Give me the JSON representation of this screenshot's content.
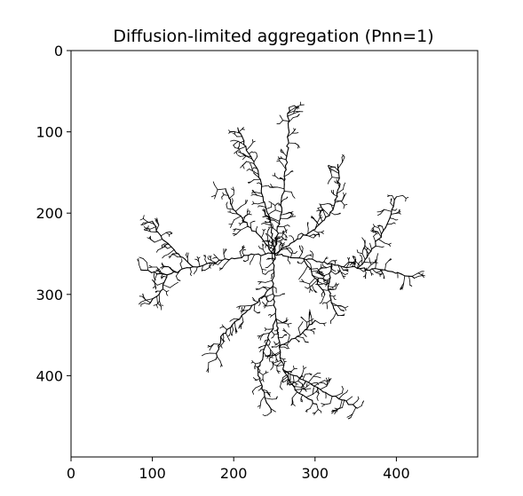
{
  "chart_data": {
    "type": "image",
    "title": "Diffusion-limited aggregation (Pnn=1)",
    "xlim": [
      0,
      500
    ],
    "ylim": [
      500,
      0
    ],
    "y_inverted": true,
    "grid": false,
    "legend": "none",
    "x_ticks": [
      0,
      100,
      200,
      300,
      400
    ],
    "y_ticks": [
      0,
      100,
      200,
      300,
      400
    ],
    "x_tick_labels": [
      "0",
      "100",
      "200",
      "300",
      "400"
    ],
    "y_tick_labels": [
      "0",
      "100",
      "200",
      "300",
      "400"
    ],
    "cluster": {
      "seed": [
        250,
        250
      ],
      "extent_x": [
        85,
        425
      ],
      "extent_y": [
        65,
        445
      ],
      "color": "#000000",
      "arms": [
        {
          "name": "north",
          "points": [
            [
              250,
              250
            ],
            [
              256,
              210
            ],
            [
              262,
              170
            ],
            [
              266,
              125
            ],
            [
              268,
              70
            ]
          ]
        },
        {
          "name": "north-west",
          "points": [
            [
              250,
              250
            ],
            [
              246,
              215
            ],
            [
              236,
              180
            ],
            [
              230,
              148
            ],
            [
              215,
              118
            ],
            [
              205,
              95
            ]
          ]
        },
        {
          "name": "north-east",
          "points": [
            [
              250,
              250
            ],
            [
              278,
              232
            ],
            [
              300,
              220
            ],
            [
              322,
              196
            ],
            [
              330,
              168
            ],
            [
              328,
              140
            ]
          ]
        },
        {
          "name": "north-west-2",
          "points": [
            [
              250,
              250
            ],
            [
              232,
              228
            ],
            [
              212,
              210
            ],
            [
              196,
              188
            ],
            [
              190,
              170
            ]
          ]
        },
        {
          "name": "west",
          "points": [
            [
              250,
              250
            ],
            [
              218,
              252
            ],
            [
              186,
              258
            ],
            [
              150,
              266
            ],
            [
              118,
              276
            ],
            [
              86,
              270
            ]
          ]
        },
        {
          "name": "west-upper",
          "points": [
            [
              150,
              266
            ],
            [
              132,
              250
            ],
            [
              112,
              232
            ],
            [
              100,
              210
            ]
          ]
        },
        {
          "name": "west-lower",
          "points": [
            [
              118,
              276
            ],
            [
              110,
              296
            ],
            [
              96,
              312
            ]
          ]
        },
        {
          "name": "east",
          "points": [
            [
              250,
              250
            ],
            [
              286,
              256
            ],
            [
              320,
              262
            ],
            [
              352,
              268
            ],
            [
              386,
              270
            ],
            [
              422,
              280
            ]
          ]
        },
        {
          "name": "east-upper",
          "points": [
            [
              352,
              268
            ],
            [
              366,
              250
            ],
            [
              378,
              232
            ],
            [
              392,
              206
            ],
            [
              400,
              180
            ]
          ]
        },
        {
          "name": "east-lower",
          "points": [
            [
              320,
              262
            ],
            [
              316,
              290
            ],
            [
              320,
              310
            ],
            [
              328,
              326
            ]
          ]
        },
        {
          "name": "south",
          "points": [
            [
              250,
              250
            ],
            [
              248,
              290
            ],
            [
              252,
              330
            ],
            [
              256,
              365
            ],
            [
              262,
              395
            ],
            [
              278,
              420
            ],
            [
              302,
              435
            ]
          ]
        },
        {
          "name": "south-west",
          "points": [
            [
              252,
              330
            ],
            [
              240,
              360
            ],
            [
              230,
              395
            ],
            [
              238,
              425
            ],
            [
              246,
              445
            ]
          ]
        },
        {
          "name": "south-west-2",
          "points": [
            [
              248,
              290
            ],
            [
              226,
              312
            ],
            [
              204,
              332
            ],
            [
              184,
              352
            ],
            [
              178,
              380
            ]
          ]
        },
        {
          "name": "south-east",
          "points": [
            [
              262,
              395
            ],
            [
              285,
              405
            ],
            [
              310,
              420
            ],
            [
              336,
              430
            ],
            [
              352,
              440
            ]
          ]
        },
        {
          "name": "south-east-2",
          "points": [
            [
              256,
              365
            ],
            [
              282,
              350
            ],
            [
              300,
              332
            ]
          ]
        },
        {
          "name": "center-east",
          "points": [
            [
              286,
              256
            ],
            [
              300,
              280
            ],
            [
              312,
              300
            ]
          ]
        }
      ]
    }
  }
}
